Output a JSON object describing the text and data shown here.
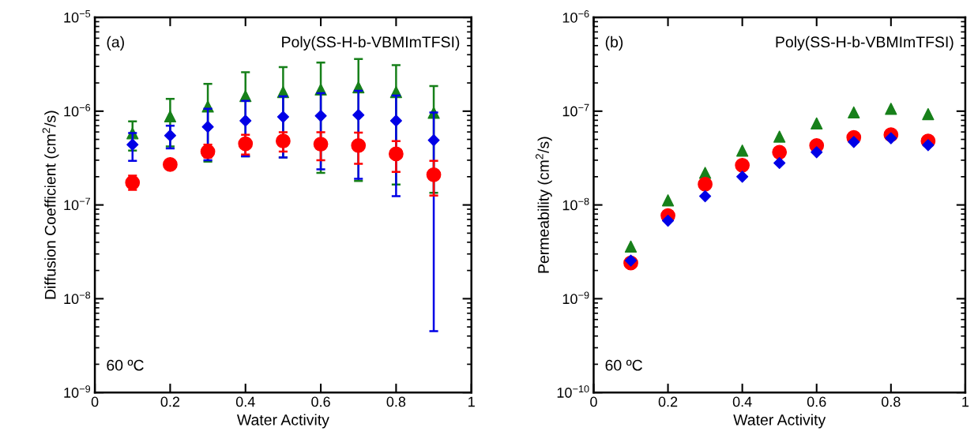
{
  "chart_data": [
    {
      "type": "scatter",
      "xlabel": "Water Activity",
      "ylabel": "Diffusion Coefficient (cm$^{2}$/s)",
      "log": "y",
      "grid": false,
      "legend": false,
      "annotations": [
        "(a)",
        "Poly(SS-H-b-VBMImTFSI)",
        "60 ºC"
      ],
      "xlim": [
        0,
        1
      ],
      "xticks": [
        0,
        0.2,
        0.4,
        0.6,
        0.8,
        {
          "value": 1,
          "label": "1"
        }
      ],
      "ylim": [
        1e-09,
        1e-05
      ],
      "yticks": [
        {
          "value": 1e-09,
          "label": "10$^{−9}$"
        },
        {
          "value": 1e-08,
          "label": "10$^{−8}$"
        },
        {
          "value": 1e-07,
          "label": "10$^{−7}$"
        },
        {
          "value": 1e-06,
          "label": "10$^{−6}$"
        },
        {
          "value": 1e-05,
          "label": "10$^{−5}$"
        }
      ],
      "x": [
        0.1,
        0.2,
        0.3,
        0.4,
        0.5,
        0.6,
        0.7,
        0.8,
        0.9
      ],
      "series": [
        {
          "color": "#17801a",
          "marker": "triangle",
          "values": [
            5.8e-07,
            8.8e-07,
            1.12e-06,
            1.45e-06,
            1.6e-06,
            1.7e-06,
            1.8e-06,
            1.6e-06,
            9.6e-07
          ],
          "errors": [
            [
              3.8e-07,
              7.8e-07
            ],
            [
              4.2e-07,
              1.35e-06
            ],
            [
              2.9e-07,
              1.95e-06
            ],
            [
              3.3e-07,
              2.6e-06
            ],
            [
              3.2e-07,
              2.95e-06
            ],
            [
              2.2e-07,
              3.3e-06
            ],
            [
              1.8e-07,
              3.6e-06
            ],
            [
              1.65e-07,
              3.1e-06
            ],
            [
              1.35e-07,
              1.85e-06
            ]
          ]
        },
        {
          "color": "#0000e6",
          "marker": "diamond",
          "values": [
            4.4e-07,
            5.5e-07,
            6.8e-07,
            7.9e-07,
            8.7e-07,
            8.9e-07,
            9.1e-07,
            7.9e-07,
            4.9e-07
          ],
          "errors": [
            [
              2.95e-07,
              5.85e-07
            ],
            [
              4e-07,
              7e-07
            ],
            [
              3e-07,
              1.06e-06
            ],
            [
              3.3e-07,
              1.29e-06
            ],
            [
              3.2e-07,
              1.44e-06
            ],
            [
              2.4e-07,
              1.56e-06
            ],
            [
              1.9e-07,
              1.65e-06
            ],
            [
              1.24e-07,
              1.47e-06
            ],
            [
              4.5e-09,
              9.7e-07
            ]
          ]
        },
        {
          "color": "#ff0000",
          "marker": "circle",
          "values": [
            1.73e-07,
            2.7e-07,
            3.7e-07,
            4.5e-07,
            4.8e-07,
            4.45e-07,
            4.3e-07,
            3.5e-07,
            2.1e-07
          ],
          "errors": [
            [
              1.45e-07,
              2.05e-07
            ],
            null,
            [
              3.2e-07,
              4.4e-07
            ],
            [
              3.45e-07,
              5.6e-07
            ],
            [
              3.7e-07,
              5.95e-07
            ],
            [
              3e-07,
              5.95e-07
            ],
            [
              2.75e-07,
              5.9e-07
            ],
            [
              2.25e-07,
              4.8e-07
            ],
            [
              1.26e-07,
              2.95e-07
            ]
          ]
        }
      ]
    },
    {
      "type": "scatter",
      "xlabel": "Water Activity",
      "ylabel": "Permeability (cm$^{2}$/s)",
      "log": "y",
      "grid": false,
      "legend": false,
      "annotations": [
        "(b)",
        "Poly(SS-H-b-VBMImTFSI)",
        "60 ºC"
      ],
      "xlim": [
        0,
        1
      ],
      "xticks": [
        0,
        0.2,
        0.4,
        0.6,
        0.8,
        {
          "value": 1,
          "label": "1"
        }
      ],
      "ylim": [
        1e-10,
        1e-06
      ],
      "yticks": [
        {
          "value": 1e-10,
          "label": "10$^{−10}$"
        },
        {
          "value": 1e-09,
          "label": "10$^{−9}$"
        },
        {
          "value": 1e-08,
          "label": "10$^{−8}$"
        },
        {
          "value": 1e-07,
          "label": "10$^{−7}$"
        },
        {
          "value": 1e-06,
          "label": "10$^{−6}$"
        }
      ],
      "x": [
        0.1,
        0.2,
        0.3,
        0.4,
        0.5,
        0.6,
        0.7,
        0.8,
        0.9
      ],
      "series": [
        {
          "color": "#17801a",
          "marker": "triangle",
          "values": [
            3.6e-09,
            1.12e-08,
            2.2e-08,
            3.8e-08,
            5.35e-08,
            7.4e-08,
            9.7e-08,
            1.06e-07,
            9.3e-08
          ]
        },
        {
          "color": "#ff0000",
          "marker": "circle",
          "values": [
            2.4e-09,
            7.7e-09,
            1.66e-08,
            2.65e-08,
            3.65e-08,
            4.3e-08,
            5.25e-08,
            5.6e-08,
            4.8e-08
          ]
        },
        {
          "color": "#0000e6",
          "marker": "diamond",
          "values": [
            2.55e-09,
            6.8e-09,
            1.24e-08,
            2e-08,
            2.8e-08,
            3.65e-08,
            4.7e-08,
            5.15e-08,
            4.35e-08
          ]
        }
      ]
    }
  ]
}
